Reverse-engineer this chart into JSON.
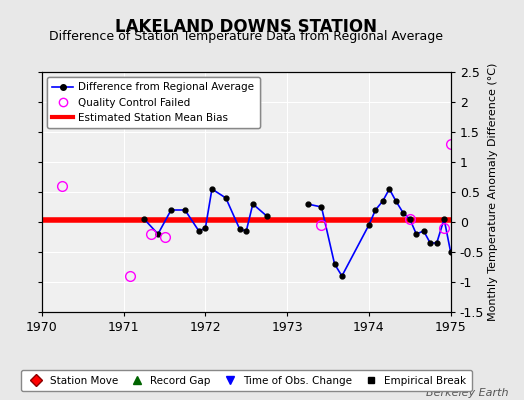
{
  "title": "LAKELAND DOWNS STATION",
  "subtitle": "Difference of Station Temperature Data from Regional Average",
  "ylabel_right": "Monthly Temperature Anomaly Difference (°C)",
  "xlim": [
    1970,
    1975
  ],
  "ylim": [
    -1.5,
    2.5
  ],
  "yticks": [
    -1.5,
    -1.0,
    -0.5,
    0.0,
    0.5,
    1.0,
    1.5,
    2.0,
    2.5
  ],
  "xticks": [
    1970,
    1971,
    1972,
    1973,
    1974,
    1975
  ],
  "line_color": "#0000FF",
  "bias_color": "#FF0000",
  "qc_color": "#FF00FF",
  "bg_color": "#E8E8E8",
  "plot_bg_color": "#F0F0F0",
  "grid_color": "#FFFFFF",
  "title_fontsize": 12,
  "subtitle_fontsize": 9,
  "tick_fontsize": 9,
  "watermark": "Berkeley Earth",
  "bias_value": 0.03,
  "seg1_x": [
    1971.25,
    1971.42,
    1971.58,
    1971.75,
    1971.92,
    1972.0,
    1972.08,
    1972.25,
    1972.42,
    1972.5,
    1972.58,
    1972.75
  ],
  "seg1_y": [
    0.05,
    -0.2,
    0.2,
    0.2,
    -0.15,
    -0.1,
    0.55,
    0.4,
    -0.12,
    -0.15,
    0.3,
    0.1
  ],
  "seg2_x": [
    1973.25,
    1973.42,
    1973.58,
    1973.67,
    1974.0,
    1974.08,
    1974.17,
    1974.25,
    1974.33,
    1974.42,
    1974.5,
    1974.58,
    1974.67,
    1974.75,
    1974.83,
    1974.92,
    1975.0
  ],
  "seg2_y": [
    0.3,
    0.25,
    -0.7,
    -0.9,
    -0.05,
    0.2,
    0.35,
    0.55,
    0.35,
    0.15,
    0.05,
    -0.2,
    -0.15,
    -0.35,
    -0.35,
    0.05,
    -0.5
  ],
  "qc_x": [
    1970.25,
    1971.08,
    1971.33,
    1971.5,
    1973.42,
    1974.5,
    1974.92,
    1975.0
  ],
  "qc_y": [
    0.6,
    -0.9,
    -0.2,
    -0.25,
    -0.05,
    0.05,
    -0.1,
    1.3
  ]
}
